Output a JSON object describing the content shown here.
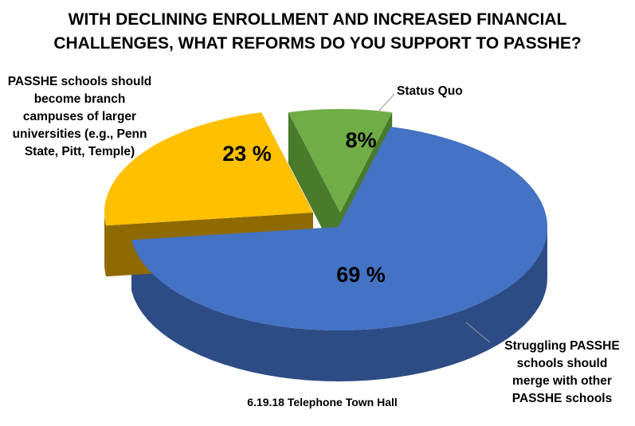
{
  "chart_data": {
    "type": "pie",
    "title": [
      "WITH DECLINING ENROLLMENT AND INCREASED FINANCIAL",
      "CHALLENGES, WHAT REFORMS DO YOU SUPPORT TO PASSHE?"
    ],
    "slices": [
      {
        "label_lines": [
          "Struggling PASSHE",
          "schools should",
          "merge with other",
          "PASSHE schools"
        ],
        "value": 69,
        "value_label": "69 %",
        "color": "#4472C4",
        "side_color": "#2D4C85"
      },
      {
        "label_lines": [
          "PASSHE schools should",
          "become branch",
          "campuses of larger",
          "universities (e.g., Penn",
          "State, Pitt, Temple)"
        ],
        "value": 23,
        "value_label": "23 %",
        "color": "#FFC000",
        "side_color": "#8F6A00"
      },
      {
        "label_lines": [
          "Status Quo"
        ],
        "value": 8,
        "value_label": "8%",
        "color": "#70AD47",
        "side_color": "#4A7A2C"
      }
    ],
    "footer": "6.19.18 Telephone Town Hall",
    "style": "3D exploded pie"
  }
}
